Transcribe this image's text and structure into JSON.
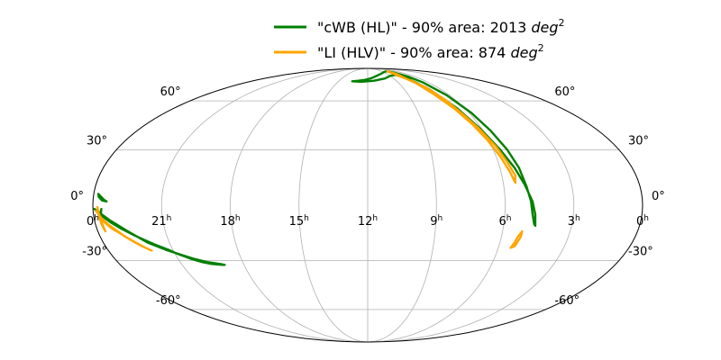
{
  "chart_data": {
    "type": "line",
    "projection": "mollweide",
    "grid": true,
    "legend_position": "top",
    "ra_ticks": [
      "0h",
      "21h",
      "18h",
      "15h",
      "12h",
      "9h",
      "6h",
      "3h",
      "0h"
    ],
    "ra_tick_values_hours": [
      24,
      21,
      18,
      15,
      12,
      9,
      6,
      3,
      0
    ],
    "dec_ticks": [
      "60°",
      "30°",
      "0°",
      "-30°",
      "-60°"
    ],
    "dec_tick_values": [
      60,
      30,
      0,
      -30,
      -60
    ],
    "series": [
      {
        "name": "\"cWB (HL)\" - 90% area: 2013 deg²",
        "legend_main": "\"cWB (HL)\" - 90% area: 2013 ",
        "legend_unit": "deg",
        "legend_sup": "2",
        "color": "#008000",
        "contours": [
          [
            [
              204,
              75
            ],
            [
              195,
              75.5
            ],
            [
              185,
              76.2
            ],
            [
              175,
              77.5
            ],
            [
              165,
              79.5
            ],
            [
              150,
              82
            ],
            [
              135,
              84
            ],
            [
              122,
              85
            ],
            [
              118,
              85
            ],
            [
              110,
              83.5
            ],
            [
              102,
              79
            ],
            [
              98,
              74
            ],
            [
              93,
              64
            ],
            [
              88,
              52
            ],
            [
              84,
              41
            ],
            [
              80,
              30
            ],
            [
              77,
              20
            ],
            [
              75,
              10
            ],
            [
              73,
              2
            ],
            [
              72,
              -4
            ],
            [
              70,
              -10
            ],
            [
              69,
              -11
            ],
            [
              70,
              -5
            ],
            [
              72,
              2
            ],
            [
              76,
              11
            ],
            [
              80,
              20
            ],
            [
              85,
              30
            ],
            [
              91,
              42
            ],
            [
              97,
              55
            ],
            [
              104,
              68
            ],
            [
              110,
              77
            ],
            [
              120,
              81
            ],
            [
              135,
              80
            ],
            [
              150,
              77.5
            ],
            [
              170,
              75.5
            ],
            [
              190,
              74.5
            ],
            [
              204,
              75
            ]
          ],
          [
            [
              357,
              6
            ],
            [
              355,
              4.5
            ],
            [
              353,
              3
            ],
            [
              351,
              2
            ],
            [
              354,
              2.5
            ],
            [
              356.5,
              4.5
            ],
            [
              357,
              6
            ]
          ],
          [
            [
              354.5,
              -2
            ],
            [
              355.2,
              -5
            ],
            [
              356.2,
              -6.5
            ],
            [
              355.2,
              -4
            ],
            [
              354.5,
              -2
            ]
          ],
          [
            [
              359,
              -2
            ],
            [
              355,
              -5.5
            ],
            [
              350,
              -9
            ],
            [
              344,
              -12.5
            ],
            [
              336,
              -16.5
            ],
            [
              326,
              -21
            ],
            [
              318,
              -24
            ],
            [
              314,
              -26
            ],
            [
              306,
              -29
            ],
            [
              299,
              -31
            ],
            [
              293,
              -32
            ],
            [
              286,
              -32.5
            ],
            [
              284,
              -32.5
            ],
            [
              287,
              -32
            ],
            [
              295,
              -31
            ],
            [
              304,
              -29
            ],
            [
              312,
              -26.5
            ],
            [
              320,
              -24
            ],
            [
              330,
              -20
            ],
            [
              340,
              -14
            ],
            [
              350,
              -8
            ],
            [
              356,
              -4
            ],
            [
              359,
              -2
            ]
          ]
        ]
      },
      {
        "name": "\"LI (HLV)\" - 90% area: 874 deg²",
        "legend_main": "\"LI (HLV)\" - 90% area: 874 ",
        "legend_unit": "deg",
        "legend_sup": "2",
        "color": "#ffa500",
        "contours": [
          [
            [
              118,
              85
            ],
            [
              113,
              82
            ],
            [
              112,
              75
            ],
            [
              105,
              70
            ],
            [
              100,
              60
            ],
            [
              96,
              50
            ],
            [
              92,
              42
            ],
            [
              87,
              32
            ],
            [
              84,
              24
            ],
            [
              81,
              16
            ],
            [
              82,
              12
            ],
            [
              84,
              18
            ],
            [
              87,
              26
            ],
            [
              91,
              36
            ],
            [
              95,
              45
            ],
            [
              100,
              55
            ],
            [
              106,
              65
            ],
            [
              110,
              75
            ],
            [
              117,
              79
            ],
            [
              119,
              82
            ],
            [
              118,
              85
            ]
          ],
          [
            [
              77,
              -14
            ],
            [
              79,
              -17
            ],
            [
              80,
              -20
            ],
            [
              81.5,
              -23
            ],
            [
              79,
              -22
            ],
            [
              77,
              -17
            ],
            [
              77,
              -14
            ]
          ],
          [
            [
              358,
              -3
            ],
            [
              356,
              -6
            ],
            [
              354,
              -9
            ],
            [
              350,
              -12.5
            ],
            [
              345,
              -15.5
            ],
            [
              340,
              -19
            ],
            [
              335,
              -22
            ],
            [
              330,
              -24.5
            ],
            [
              333,
              -23
            ],
            [
              338,
              -20
            ],
            [
              343,
              -17
            ],
            [
              348,
              -13
            ],
            [
              352,
              -10
            ],
            [
              355,
              -7
            ],
            [
              358,
              -3
            ]
          ],
          [
            [
              357,
              -1
            ],
            [
              356.5,
              -4
            ],
            [
              356,
              -7
            ],
            [
              355.5,
              -10
            ],
            [
              355,
              -14
            ],
            [
              356,
              -10
            ],
            [
              356.5,
              -6
            ],
            [
              357,
              -1
            ]
          ]
        ]
      }
    ]
  }
}
